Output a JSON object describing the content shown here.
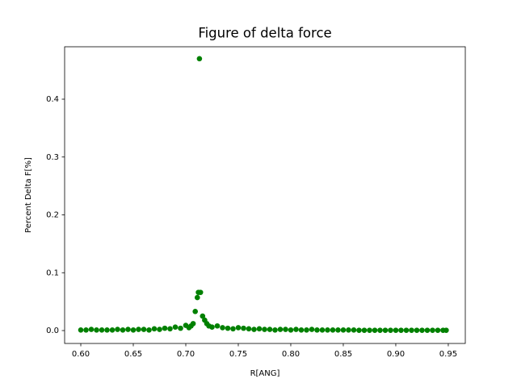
{
  "chart_data": {
    "type": "scatter",
    "title": "Figure of delta force",
    "x_label": "R[ANG]",
    "y_label": "Percent Delta F[%]",
    "color": "#008000",
    "grid": false,
    "xlim": [
      0.5846,
      0.9662
    ],
    "ylim": [
      -0.0223,
      0.4906
    ],
    "xticks": [
      {
        "value": 0.6,
        "label": "0.60"
      },
      {
        "value": 0.65,
        "label": "0.65"
      },
      {
        "value": 0.7,
        "label": "0.70"
      },
      {
        "value": 0.75,
        "label": "0.75"
      },
      {
        "value": 0.8,
        "label": "0.80"
      },
      {
        "value": 0.85,
        "label": "0.85"
      },
      {
        "value": 0.9,
        "label": "0.90"
      },
      {
        "value": 0.95,
        "label": "0.95"
      }
    ],
    "yticks": [
      {
        "value": 0,
        "label": "0.0"
      },
      0.1,
      0.2,
      0.3,
      0.4
    ],
    "x": [
      0.6,
      0.605,
      0.61,
      0.615,
      0.62,
      0.625,
      0.63,
      0.635,
      0.64,
      0.645,
      0.65,
      0.655,
      0.66,
      0.665,
      0.67,
      0.675,
      0.68,
      0.685,
      0.69,
      0.695,
      0.7,
      0.703,
      0.705,
      0.707,
      0.709,
      0.711,
      0.712,
      0.713,
      0.714,
      0.716,
      0.718,
      0.72,
      0.722,
      0.725,
      0.73,
      0.735,
      0.74,
      0.745,
      0.75,
      0.755,
      0.76,
      0.765,
      0.77,
      0.775,
      0.78,
      0.785,
      0.79,
      0.795,
      0.8,
      0.805,
      0.81,
      0.815,
      0.82,
      0.825,
      0.83,
      0.835,
      0.84,
      0.845,
      0.85,
      0.855,
      0.86,
      0.865,
      0.87,
      0.875,
      0.88,
      0.885,
      0.89,
      0.895,
      0.9,
      0.905,
      0.91,
      0.915,
      0.92,
      0.925,
      0.93,
      0.935,
      0.94,
      0.945,
      0.948
    ],
    "values": [
      0.001,
      0.001,
      0.002,
      0.001,
      0.001,
      0.001,
      0.001,
      0.002,
      0.001,
      0.002,
      0.001,
      0.002,
      0.002,
      0.001,
      0.003,
      0.002,
      0.004,
      0.003,
      0.006,
      0.004,
      0.009,
      0.005,
      0.008,
      0.012,
      0.033,
      0.057,
      0.066,
      0.47,
      0.066,
      0.025,
      0.018,
      0.012,
      0.008,
      0.006,
      0.008,
      0.005,
      0.004,
      0.003,
      0.005,
      0.004,
      0.003,
      0.002,
      0.003,
      0.002,
      0.002,
      0.001,
      0.002,
      0.002,
      0.001,
      0.002,
      0.001,
      0.001,
      0.002,
      0.001,
      0.001,
      0.001,
      0.001,
      0.001,
      0.001,
      0.001,
      0.001,
      0.0005,
      0.0005,
      0.0005,
      0.0005,
      0.0005,
      0.0005,
      0.0005,
      0.0005,
      0.0005,
      0.0005,
      0.0005,
      0.0005,
      0.0005,
      0.0005,
      0.0005,
      0.0005,
      0.0005,
      0.0005
    ]
  }
}
